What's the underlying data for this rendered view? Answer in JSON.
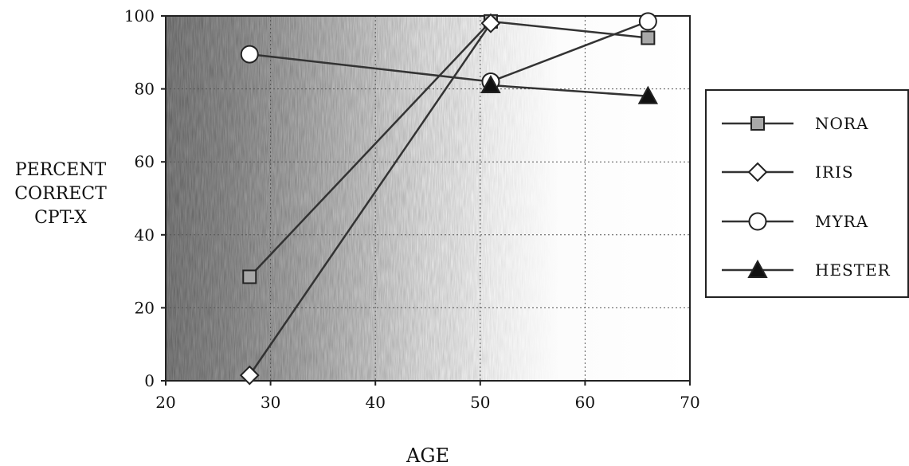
{
  "chart_data": {
    "type": "line",
    "xlabel": "AGE",
    "ylabel_lines": [
      "PERCENT",
      "CORRECT",
      "CPT-X"
    ],
    "xlim": [
      20,
      70
    ],
    "ylim": [
      0,
      100
    ],
    "x_ticks": [
      "20",
      "30",
      "40",
      "50",
      "60",
      "70"
    ],
    "y_ticks": [
      "0",
      "20",
      "40",
      "60",
      "80",
      "100"
    ],
    "grid": true,
    "legend_position": "right",
    "series": [
      {
        "name": "NORA",
        "marker": "square",
        "marker_color": "#a8a8a8",
        "points": [
          {
            "x": 28,
            "y": 28.5
          },
          {
            "x": 51,
            "y": 98.5
          },
          {
            "x": 66,
            "y": 94
          }
        ]
      },
      {
        "name": "IRIS",
        "marker": "diamond",
        "marker_color": "#ffffff",
        "points": [
          {
            "x": 28,
            "y": 1.5
          },
          {
            "x": 51,
            "y": 98
          }
        ]
      },
      {
        "name": "MYRA",
        "marker": "circle",
        "marker_color": "#ffffff",
        "points": [
          {
            "x": 28,
            "y": 89.5
          },
          {
            "x": 51,
            "y": 82
          },
          {
            "x": 66,
            "y": 98.5
          }
        ]
      },
      {
        "name": "HESTER",
        "marker": "triangle",
        "marker_color": "#111111",
        "points": [
          {
            "x": 51,
            "y": 81
          },
          {
            "x": 66,
            "y": 78
          }
        ]
      }
    ]
  }
}
